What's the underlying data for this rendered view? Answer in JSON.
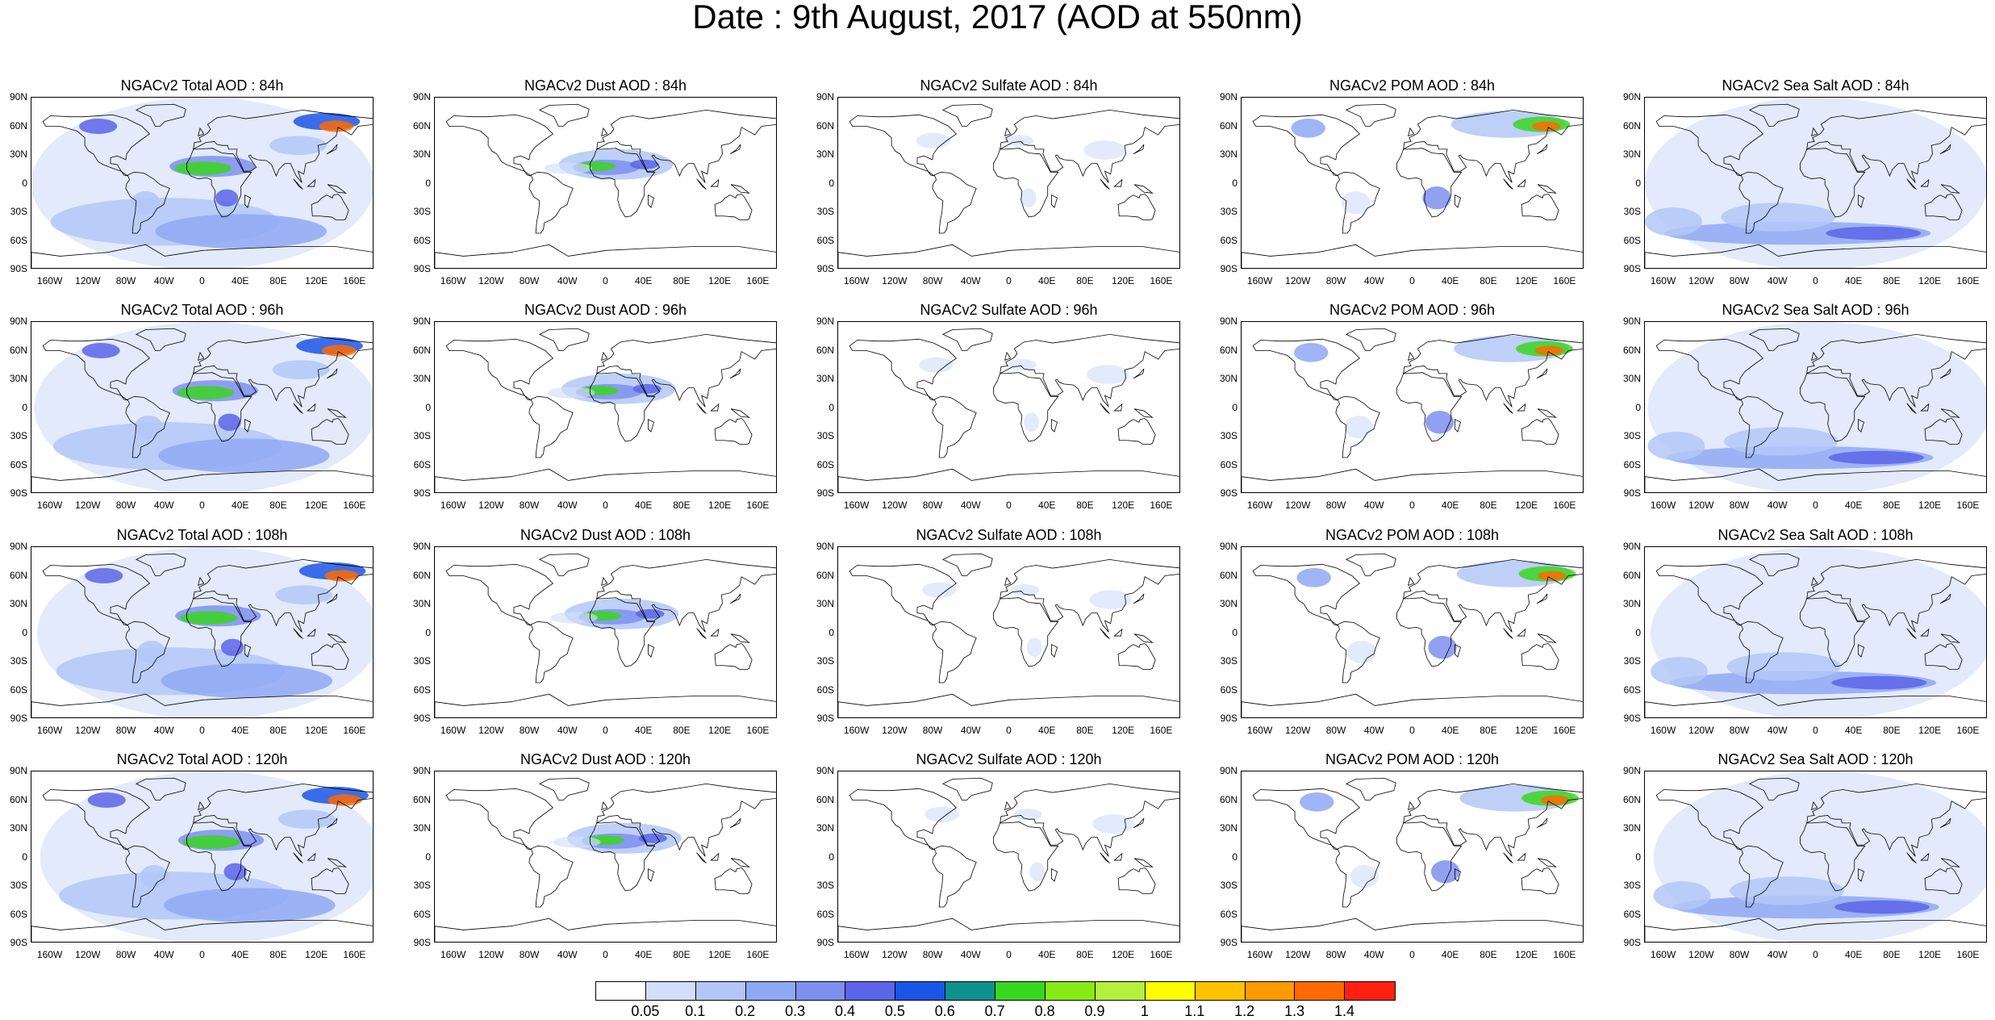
{
  "title": "Date : 9th August, 2017 (AOD at 550nm)",
  "lat_ticks": [
    "90N",
    "60N",
    "30N",
    "0",
    "30S",
    "60S",
    "90S"
  ],
  "lon_ticks": [
    "160W",
    "120W",
    "80W",
    "40W",
    "0",
    "40E",
    "80E",
    "120E",
    "160E"
  ],
  "rows": [
    "84h",
    "96h",
    "108h",
    "120h"
  ],
  "columns": [
    {
      "key": "total",
      "titles": [
        "NGACv2 Total AOD : 84h",
        "NGACv2 Total AOD : 96h",
        "NGACv2 Total AOD : 108h",
        "NGACv2 Total AOD : 120h"
      ]
    },
    {
      "key": "dust",
      "titles": [
        "NGACv2 Dust AOD : 84h",
        "NGACv2 Dust AOD : 96h",
        "NGACv2 Dust AOD : 108h",
        "NGACv2 Dust AOD : 120h"
      ]
    },
    {
      "key": "sulfate",
      "titles": [
        "NGACv2 Sulfate AOD : 84h",
        "NGACv2 Sulfate AOD : 96h",
        "NGACv2 Sulfate AOD : 108h",
        "NGACv2 Sulfate AOD : 120h"
      ]
    },
    {
      "key": "pom",
      "titles": [
        "NGACv2 POM AOD : 84h",
        "NGACv2 POM AOD : 96h",
        "NGACv2 POM AOD : 108h",
        "NGACv2 POM AOD : 120h"
      ]
    },
    {
      "key": "seasalt",
      "titles": [
        "NGACv2 Sea Salt AOD : 84h",
        "NGACv2 Sea Salt AOD : 96h",
        "NGACv2 Sea Salt AOD : 108h",
        "NGACv2 Sea Salt  AOD : 120h"
      ]
    }
  ],
  "colorbar": {
    "labels": [
      "0.05",
      "0.1",
      "0.2",
      "0.3",
      "0.4",
      "0.5",
      "0.6",
      "0.7",
      "0.8",
      "0.9",
      "1",
      "1.1",
      "1.2",
      "1.3",
      "1.4"
    ],
    "colors": [
      "#ffffff",
      "#d3defb",
      "#b3c7f7",
      "#8fa8f3",
      "#7f8ff0",
      "#5c64e8",
      "#1b55e6",
      "#10908c",
      "#39d61f",
      "#86ea17",
      "#b4f03d",
      "#ffff00",
      "#ffc200",
      "#ff9a00",
      "#ff6a00",
      "#ff2010"
    ]
  }
}
